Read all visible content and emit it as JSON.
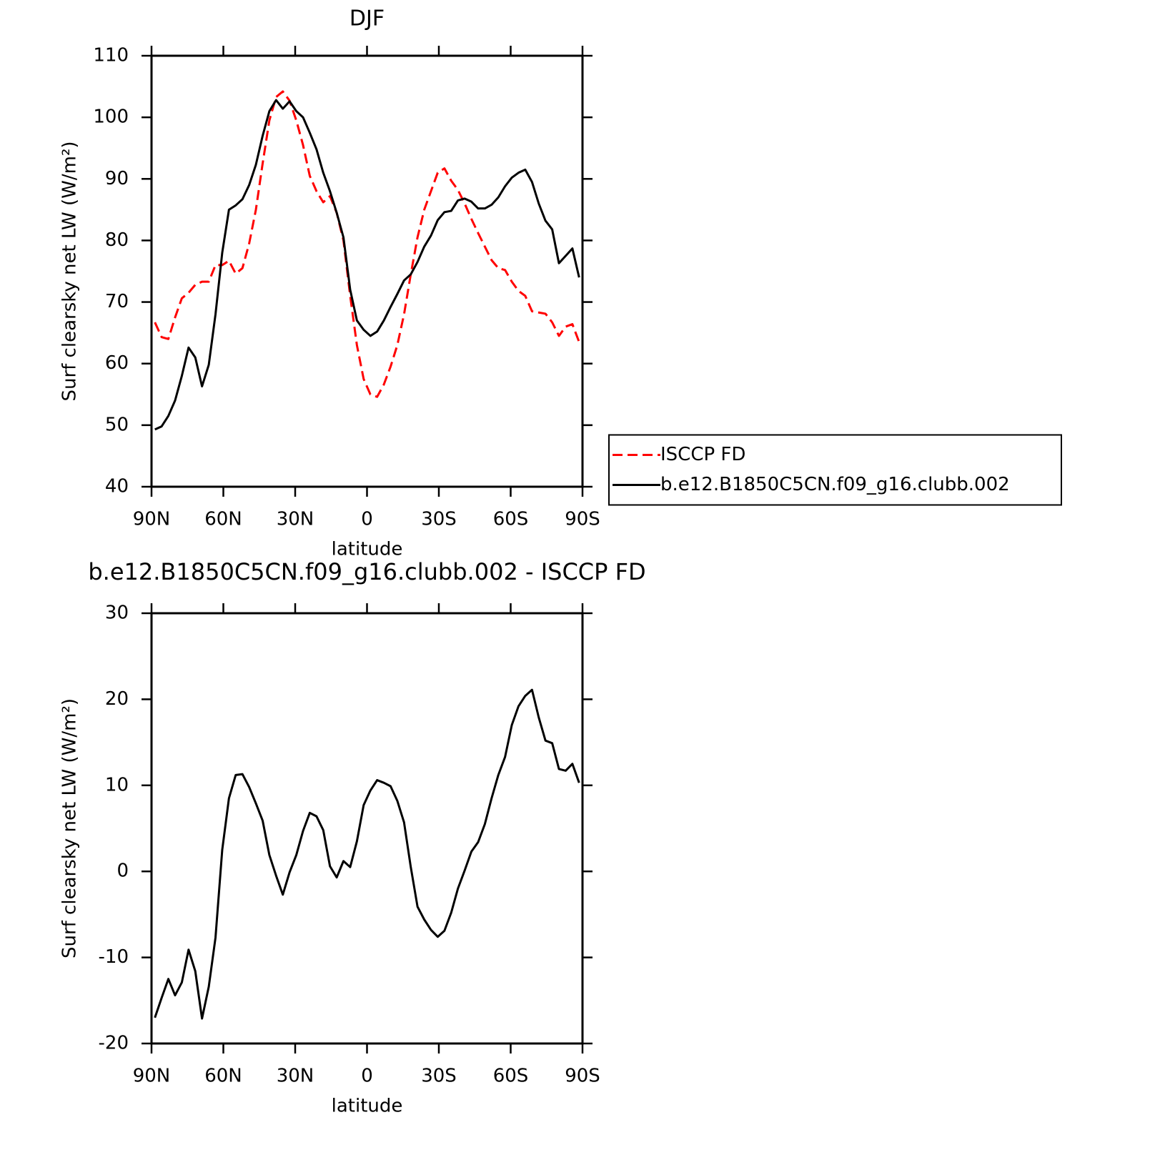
{
  "chart_data": [
    {
      "type": "line",
      "title": "DJF",
      "ylabel": "Surf clearsky net LW (W/m²)",
      "xlabel": "latitude",
      "x": [
        88.59,
        85.78,
        82.97,
        80.16,
        77.34,
        74.53,
        71.72,
        68.91,
        66.09,
        63.28,
        60.47,
        57.66,
        54.84,
        52.03,
        49.22,
        46.41,
        43.59,
        40.78,
        37.97,
        35.16,
        32.34,
        29.53,
        26.72,
        23.91,
        21.09,
        18.28,
        15.47,
        12.66,
        9.84,
        7.03,
        4.22,
        1.41,
        -1.41,
        -4.22,
        -7.03,
        -9.84,
        -12.66,
        -15.47,
        -18.28,
        -21.09,
        -23.91,
        -26.72,
        -29.53,
        -32.34,
        -35.16,
        -37.97,
        -40.78,
        -43.59,
        -46.41,
        -49.22,
        -52.03,
        -54.84,
        -57.66,
        -60.47,
        -63.28,
        -66.09,
        -68.91,
        -71.72,
        -74.53,
        -77.34,
        -80.16,
        -82.97,
        -85.78,
        -88.59
      ],
      "series": [
        {
          "name": "ISCCP FD",
          "color": "#ff0000",
          "line_style": "dashed",
          "values": [
            66.7,
            64.3,
            64,
            67.5,
            70.6,
            71.5,
            72.8,
            73.3,
            73.3,
            76,
            76,
            76.7,
            74.6,
            75.5,
            79.5,
            85,
            92.5,
            99.5,
            103.3,
            104.2,
            102.7,
            99.5,
            95.5,
            90.5,
            88,
            86.2,
            87.2,
            84.5,
            80,
            71,
            63,
            57.5,
            55,
            54.6,
            56.6,
            59.5,
            63,
            68,
            74.5,
            80.5,
            85,
            88,
            91,
            91.7,
            89.7,
            88.2,
            86,
            83.5,
            81.2,
            79,
            76.8,
            75.5,
            75.2,
            73.3,
            71.8,
            71,
            68.5,
            68.3,
            68.1,
            66.7,
            64.5,
            66,
            66.4,
            63.5
          ]
        },
        {
          "name": "b.e12.B1850C5CN.f09_g16.clubb.002",
          "color": "#000000",
          "line_style": "solid",
          "values": [
            49.3,
            49.8,
            51.5,
            54,
            58,
            62.6,
            61,
            56.3,
            59.8,
            68,
            78,
            85,
            85.7,
            86.7,
            89,
            92.3,
            97,
            101,
            102.8,
            101.4,
            102.6,
            101,
            100,
            97.5,
            94.8,
            91,
            88,
            84.5,
            80.5,
            72,
            67,
            65.5,
            64.5,
            65.2,
            67,
            69.2,
            71.3,
            73.5,
            74.5,
            76.5,
            79,
            80.8,
            83.3,
            84.6,
            84.8,
            86.5,
            86.8,
            86.3,
            85.2,
            85.2,
            85.8,
            87,
            88.8,
            90.2,
            91,
            91.5,
            89.5,
            86,
            83.2,
            81.8,
            76.3,
            77.5,
            78.7,
            74
          ]
        }
      ],
      "xlim": [
        90,
        -90
      ],
      "xticks": [
        {
          "value": 90,
          "label": "90N"
        },
        {
          "value": 60,
          "label": "60N"
        },
        {
          "value": 30,
          "label": "30N"
        },
        0,
        {
          "value": -30,
          "label": "30S"
        },
        {
          "value": -60,
          "label": "60S"
        },
        {
          "value": -90,
          "label": "90S"
        }
      ],
      "ylim": [
        40,
        110
      ],
      "yticks": [
        40,
        50,
        60,
        70,
        80,
        90,
        100,
        110
      ],
      "legend": "right"
    },
    {
      "type": "line",
      "title": "b.e12.B1850C5CN.f09_g16.clubb.002 - ISCCP FD",
      "ylabel": "Surf clearsky net LW (W/m²)",
      "xlabel": "latitude",
      "x": [
        88.59,
        85.78,
        82.97,
        80.16,
        77.34,
        74.53,
        71.72,
        68.91,
        66.09,
        63.28,
        60.47,
        57.66,
        54.84,
        52.03,
        49.22,
        46.41,
        43.59,
        40.78,
        37.97,
        35.16,
        32.34,
        29.53,
        26.72,
        23.91,
        21.09,
        18.28,
        15.47,
        12.66,
        9.84,
        7.03,
        4.22,
        1.41,
        -1.41,
        -4.22,
        -7.03,
        -9.84,
        -12.66,
        -15.47,
        -18.28,
        -21.09,
        -23.91,
        -26.72,
        -29.53,
        -32.34,
        -35.16,
        -37.97,
        -40.78,
        -43.59,
        -46.41,
        -49.22,
        -52.03,
        -54.84,
        -57.66,
        -60.47,
        -63.28,
        -66.09,
        -68.91,
        -71.72,
        -74.53,
        -77.34,
        -80.16,
        -82.97,
        -85.78,
        -88.59
      ],
      "series": [
        {
          "color": "#000000",
          "line_style": "solid",
          "values": [
            -17,
            -14.7,
            -12.5,
            -14.4,
            -12.9,
            -9.1,
            -11.6,
            -17.1,
            -13.4,
            -7.7,
            2.5,
            8.5,
            11.2,
            11.3,
            9.8,
            7.9,
            5.9,
            1.9,
            -0.5,
            -2.7,
            -0.1,
            1.9,
            4.7,
            6.8,
            6.4,
            4.8,
            0.6,
            -0.7,
            1.2,
            0.5,
            3.5,
            7.7,
            9.4,
            10.6,
            10.3,
            9.9,
            8.2,
            5.7,
            0.5,
            -4.1,
            -5.6,
            -6.8,
            -7.6,
            -6.9,
            -4.8,
            -2,
            0.1,
            2.3,
            3.4,
            5.5,
            8.5,
            11.2,
            13.3,
            17,
            19.2,
            20.4,
            21.1,
            17.9,
            15.2,
            14.9,
            11.9,
            11.7,
            12.5,
            10.3
          ]
        }
      ],
      "xlim": [
        90,
        -90
      ],
      "xticks": [
        {
          "value": 90,
          "label": "90N"
        },
        {
          "value": 60,
          "label": "60N"
        },
        {
          "value": 30,
          "label": "30N"
        },
        0,
        {
          "value": -30,
          "label": "30S"
        },
        {
          "value": -60,
          "label": "60S"
        },
        {
          "value": -90,
          "label": "90S"
        }
      ],
      "ylim": [
        -20,
        30
      ],
      "yticks": [
        -20,
        -10,
        0,
        10,
        20,
        30
      ]
    }
  ]
}
